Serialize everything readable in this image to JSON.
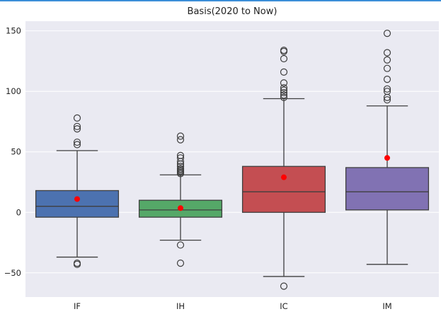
{
  "accent_color": "#3b8ed8",
  "chart_data": {
    "type": "box",
    "title": "Basis(2020 to Now)",
    "xlabel": "",
    "ylabel": "",
    "ylim": [
      -70,
      158
    ],
    "yticks": [
      -50,
      0,
      50,
      100,
      150
    ],
    "grid": true,
    "legend": "none",
    "categories": [
      "IF",
      "IH",
      "IC",
      "IM"
    ],
    "boxes": [
      {
        "category": "IF",
        "color": "#4c72b0",
        "whisker_low": -37,
        "q1": -4,
        "median": 5,
        "q3": 18,
        "whisker_high": 51,
        "mean": 11,
        "outliers": [
          78,
          71,
          69,
          58,
          56,
          -42,
          -43
        ]
      },
      {
        "category": "IH",
        "color": "#55a868",
        "whisker_low": -23,
        "q1": -4,
        "median": 2,
        "q3": 10,
        "whisker_high": 31,
        "mean": 3.5,
        "outliers": [
          63,
          60,
          47,
          45,
          42,
          40,
          38,
          36,
          35,
          34,
          33,
          32,
          -27,
          -42
        ]
      },
      {
        "category": "IC",
        "color": "#c44e52",
        "whisker_low": -53,
        "q1": 0,
        "median": 17,
        "q3": 38,
        "whisker_high": 94,
        "mean": 29,
        "outliers": [
          134,
          133,
          127,
          116,
          107,
          103,
          101,
          99,
          97,
          95,
          -61
        ]
      },
      {
        "category": "IM",
        "color": "#8172b3",
        "whisker_low": -43,
        "q1": 2,
        "median": 17,
        "q3": 37,
        "whisker_high": 88,
        "mean": 45,
        "outliers": [
          148,
          132,
          126,
          119,
          110,
          102,
          100,
          95,
          93
        ]
      }
    ],
    "mean_color": "#ff0000"
  }
}
